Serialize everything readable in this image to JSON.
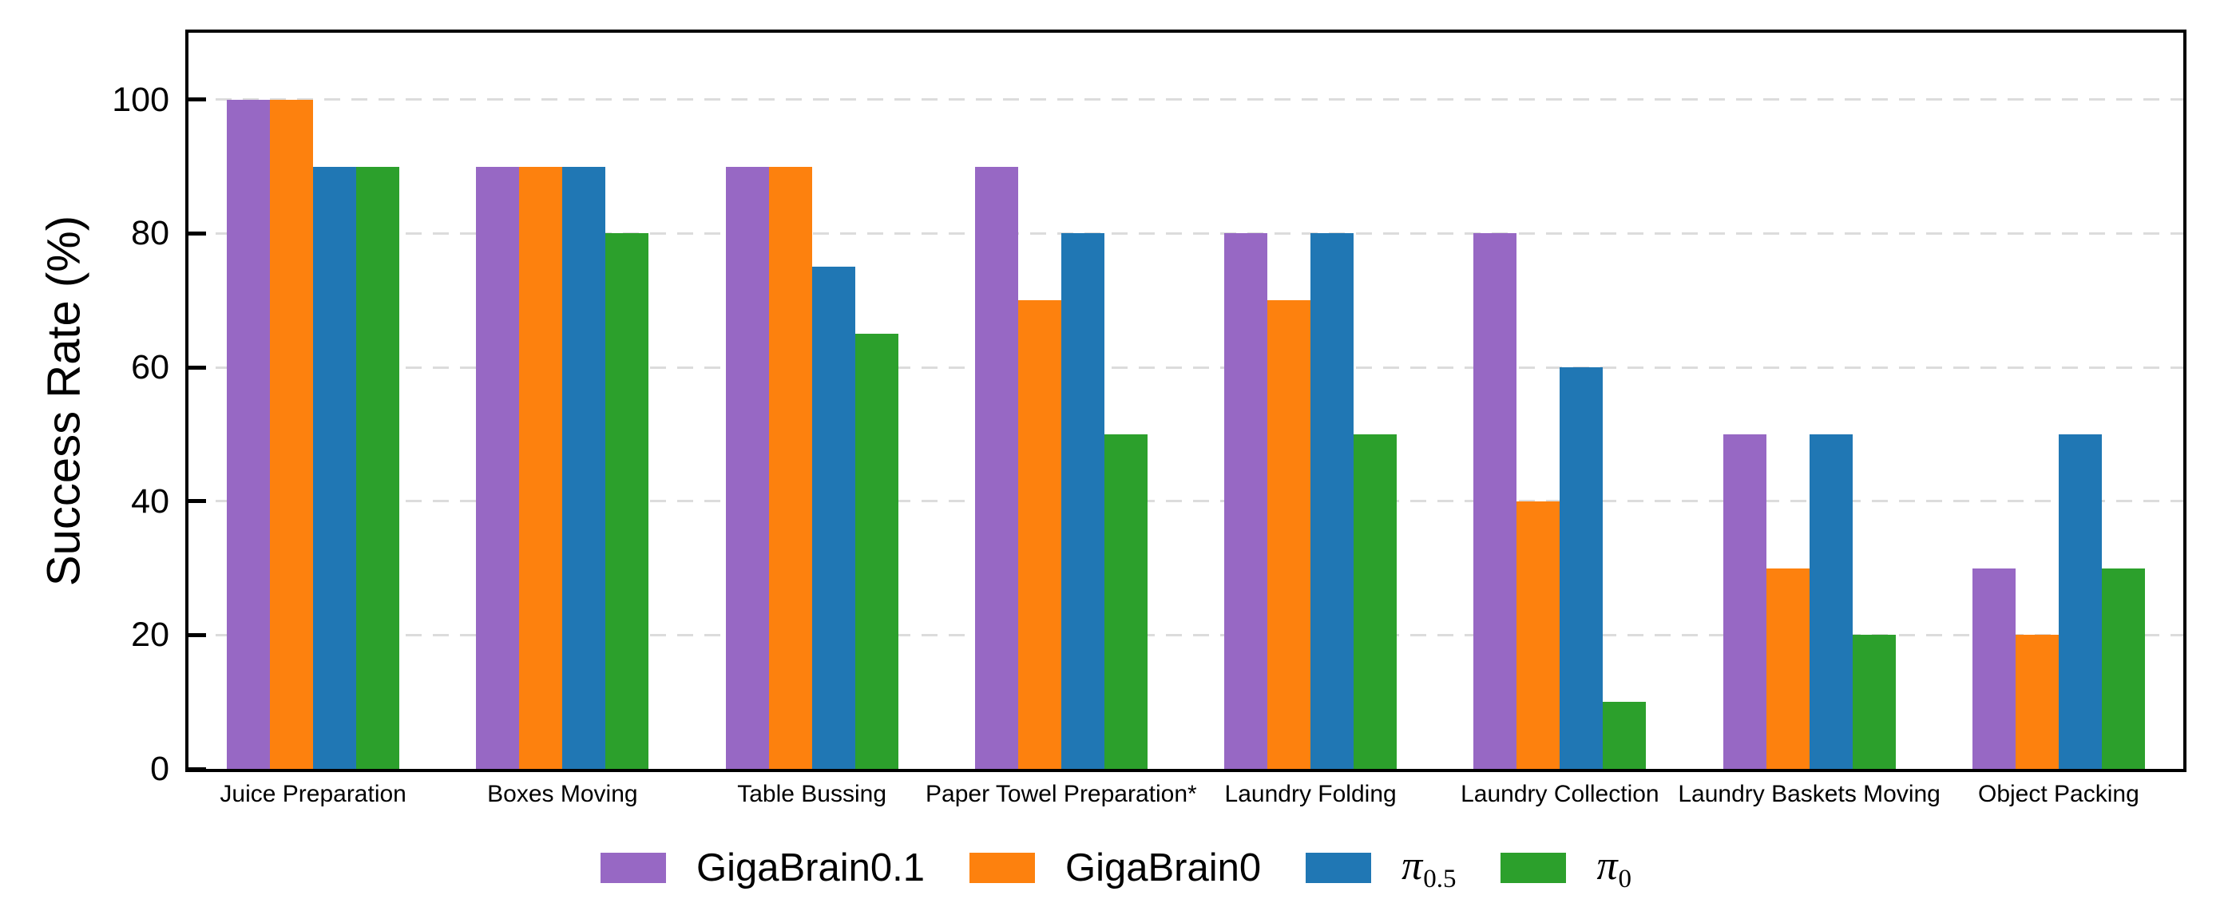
{
  "figure": {
    "background": "#ffffff",
    "axis_color": "#000000",
    "gridline_color": "#dcdcdc"
  },
  "chart_data": {
    "type": "bar",
    "title": "",
    "xlabel": "",
    "ylabel": "Success Rate (%)",
    "ylim": [
      0,
      110
    ],
    "yticks": [
      0,
      20,
      40,
      60,
      80,
      100
    ],
    "grid": "horizontal dashed gridlines at 20,40,60,80,100",
    "legend_position": "bottom-center",
    "categories": [
      "Juice Preparation",
      "Boxes Moving",
      "Table Bussing",
      "Paper Towel Preparation*",
      "Laundry Folding",
      "Laundry Collection",
      "Laundry Baskets Moving",
      "Object Packing"
    ],
    "series": [
      {
        "name": "GigaBrain0.1",
        "color": "#9768c4",
        "values": [
          100,
          90,
          90,
          90,
          80,
          80,
          50,
          30
        ]
      },
      {
        "name": "GigaBrain0",
        "color": "#fd810e",
        "values": [
          100,
          90,
          90,
          70,
          70,
          40,
          30,
          20
        ]
      },
      {
        "name": "π0.5",
        "color": "#2077b4",
        "values": [
          90,
          90,
          75,
          80,
          80,
          60,
          50,
          50
        ]
      },
      {
        "name": "π0",
        "color": "#2ca02c",
        "values": [
          90,
          80,
          65,
          50,
          50,
          10,
          20,
          30
        ]
      }
    ]
  },
  "legend": {
    "items": [
      {
        "kind": "text",
        "label": "GigaBrain0.1",
        "color": "#9768c4"
      },
      {
        "kind": "text",
        "label": "GigaBrain0",
        "color": "#fd810e"
      },
      {
        "kind": "math",
        "symbol": "π",
        "subscript": "0.5",
        "color": "#2077b4"
      },
      {
        "kind": "math",
        "symbol": "π",
        "subscript": "0",
        "color": "#2ca02c"
      }
    ]
  }
}
